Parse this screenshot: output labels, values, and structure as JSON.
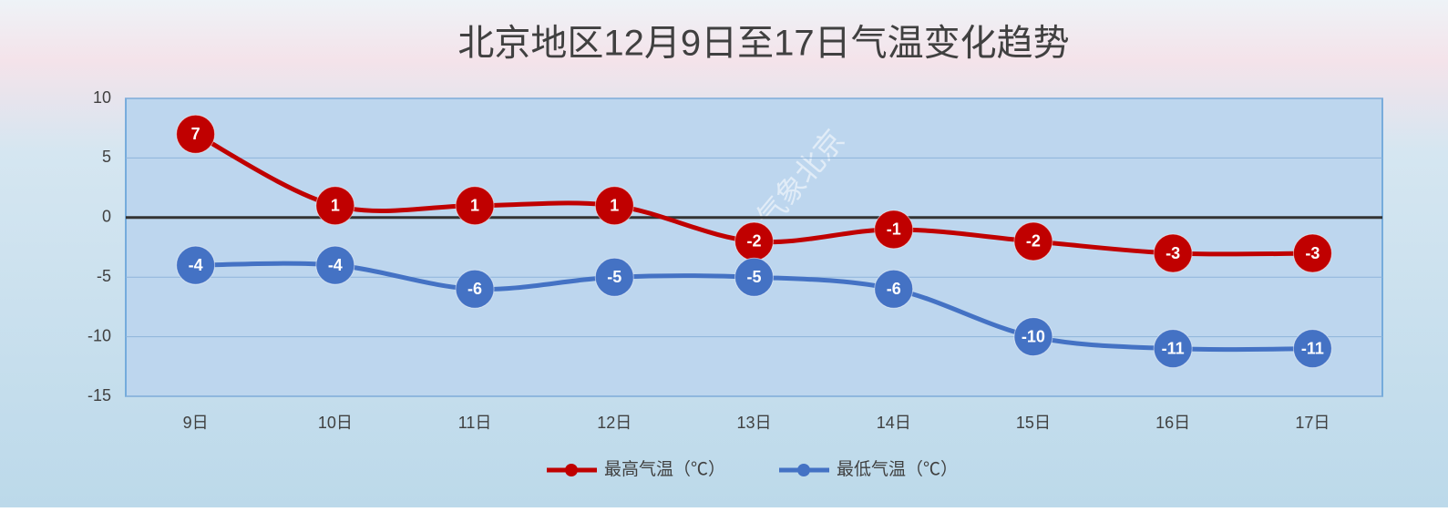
{
  "chart_data": {
    "type": "line",
    "title": "北京地区12月9日至17日气温变化趋势",
    "categories": [
      "9日",
      "10日",
      "11日",
      "12日",
      "13日",
      "14日",
      "15日",
      "16日",
      "17日"
    ],
    "series": [
      {
        "name": "最高气温（℃）",
        "color": "#c00000",
        "values": [
          7,
          1,
          1,
          1,
          -2,
          -1,
          -2,
          -3,
          -3
        ]
      },
      {
        "name": "最低气温（℃）",
        "color": "#4472c4",
        "values": [
          -4,
          -4,
          -6,
          -5,
          -5,
          -6,
          -10,
          -11,
          -11
        ]
      }
    ],
    "ylim": [
      -15,
      10
    ],
    "yticks": [
      -15,
      -10,
      -5,
      0,
      5,
      10
    ],
    "grid": true,
    "smooth": true,
    "legend": "bottom",
    "watermark": "@气象北京"
  }
}
